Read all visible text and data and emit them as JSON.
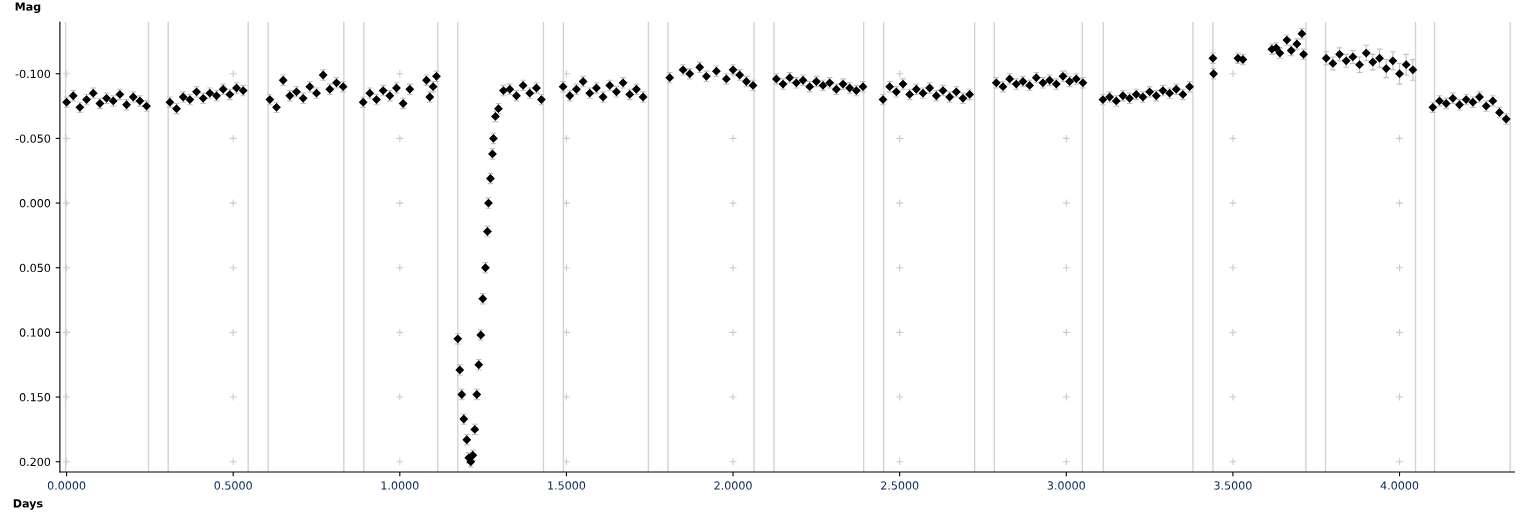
{
  "chart_data": {
    "type": "scatter",
    "xlabel": "Days",
    "ylabel": "Mag",
    "marker": "diamond",
    "grid": true,
    "xlim": [
      -0.02,
      4.345
    ],
    "ylim": [
      0.208,
      -0.14
    ],
    "xticks": [
      {
        "value": 0,
        "label": "0.0000"
      },
      {
        "value": 0.5,
        "label": "0.5000"
      },
      {
        "value": 1,
        "label": "1.0000"
      },
      {
        "value": 1.5,
        "label": "1.5000"
      },
      {
        "value": 2,
        "label": "2.0000"
      },
      {
        "value": 2.5,
        "label": "2.5000"
      },
      {
        "value": 3,
        "label": "3.0000"
      },
      {
        "value": 3.5,
        "label": "3.5000"
      },
      {
        "value": 4,
        "label": "4.0000"
      }
    ],
    "yticks": [
      {
        "value": -0.1,
        "label": "-0.100"
      },
      {
        "value": -0.05,
        "label": "-0.050"
      },
      {
        "value": 0,
        "label": "0.000"
      },
      {
        "value": 0.05,
        "label": "0.050"
      },
      {
        "value": 0.1,
        "label": "0.100"
      },
      {
        "value": 0.15,
        "label": "0.150"
      },
      {
        "value": 0.2,
        "label": "0.200"
      }
    ],
    "series": [
      {
        "color": "#000000",
        "x": [
          0.0,
          0.02,
          0.04,
          0.06,
          0.08,
          0.1,
          0.12,
          0.14,
          0.16,
          0.18,
          0.2,
          0.22,
          0.24
        ],
        "values": [
          -0.078,
          -0.083,
          -0.074,
          -0.08,
          -0.085,
          -0.077,
          -0.081,
          -0.079,
          -0.084,
          -0.076,
          -0.082,
          -0.079,
          -0.075
        ],
        "errors": [
          0.004,
          0.004,
          0.004,
          0.004,
          0.004,
          0.004,
          0.004,
          0.004,
          0.004,
          0.004,
          0.004,
          0.004,
          0.004
        ]
      },
      {
        "color": "#000000",
        "x": [
          0.31,
          0.33,
          0.35,
          0.37,
          0.39,
          0.41,
          0.43,
          0.45,
          0.47,
          0.49,
          0.51,
          0.53
        ],
        "values": [
          -0.078,
          -0.073,
          -0.082,
          -0.08,
          -0.086,
          -0.081,
          -0.085,
          -0.083,
          -0.088,
          -0.084,
          -0.089,
          -0.087
        ],
        "errors": [
          0.004,
          0.004,
          0.004,
          0.004,
          0.004,
          0.004,
          0.004,
          0.004,
          0.004,
          0.004,
          0.004,
          0.004
        ]
      },
      {
        "color": "#000000",
        "x": [
          0.61,
          0.63,
          0.65,
          0.67,
          0.69,
          0.71,
          0.73,
          0.75,
          0.77,
          0.79,
          0.81,
          0.83
        ],
        "values": [
          -0.08,
          -0.074,
          -0.095,
          -0.083,
          -0.086,
          -0.081,
          -0.09,
          -0.085,
          -0.099,
          -0.088,
          -0.093,
          -0.09
        ],
        "errors": [
          0.004,
          0.004,
          0.004,
          0.004,
          0.004,
          0.004,
          0.004,
          0.004,
          0.004,
          0.004,
          0.004,
          0.004
        ]
      },
      {
        "color": "#000000",
        "x": [
          0.89,
          0.91,
          0.93,
          0.95,
          0.97,
          0.99,
          1.01,
          1.03,
          1.08,
          1.09,
          1.1,
          1.11
        ],
        "values": [
          -0.078,
          -0.085,
          -0.08,
          -0.087,
          -0.083,
          -0.089,
          -0.077,
          -0.088,
          -0.095,
          -0.082,
          -0.09,
          -0.098
        ],
        "errors": [
          0.004,
          0.004,
          0.004,
          0.004,
          0.004,
          0.004,
          0.004,
          0.004,
          0.004,
          0.004,
          0.004,
          0.004
        ]
      },
      {
        "color": "#000000",
        "x": [
          1.174,
          1.18,
          1.186,
          1.192,
          1.201,
          1.207,
          1.213,
          1.219,
          1.225,
          1.231,
          1.237,
          1.243,
          1.249,
          1.257,
          1.263,
          1.266,
          1.272,
          1.278,
          1.281,
          1.287,
          1.296,
          1.311,
          1.33,
          1.35,
          1.37,
          1.39,
          1.41,
          1.425
        ],
        "values": [
          0.105,
          0.129,
          0.148,
          0.167,
          0.183,
          0.197,
          0.2,
          0.195,
          0.175,
          0.148,
          0.125,
          0.102,
          0.074,
          0.05,
          0.022,
          0.0,
          -0.019,
          -0.038,
          -0.05,
          -0.067,
          -0.073,
          -0.087,
          -0.088,
          -0.083,
          -0.091,
          -0.085,
          -0.089,
          -0.08
        ],
        "errors": [
          0.004,
          0.004,
          0.004,
          0.004,
          0.004,
          0.004,
          0.004,
          0.004,
          0.004,
          0.004,
          0.004,
          0.004,
          0.004,
          0.004,
          0.004,
          0.004,
          0.004,
          0.004,
          0.004,
          0.004,
          0.004,
          0.004,
          0.004,
          0.004,
          0.004,
          0.004,
          0.004,
          0.004
        ]
      },
      {
        "color": "#000000",
        "x": [
          1.49,
          1.51,
          1.53,
          1.55,
          1.57,
          1.59,
          1.61,
          1.63,
          1.65,
          1.67,
          1.69,
          1.71,
          1.73
        ],
        "values": [
          -0.09,
          -0.083,
          -0.088,
          -0.094,
          -0.085,
          -0.089,
          -0.082,
          -0.091,
          -0.086,
          -0.093,
          -0.084,
          -0.088,
          -0.082
        ],
        "errors": [
          0.004,
          0.004,
          0.004,
          0.004,
          0.004,
          0.004,
          0.004,
          0.004,
          0.004,
          0.004,
          0.004,
          0.004,
          0.004
        ]
      },
      {
        "color": "#000000",
        "x": [
          1.81,
          1.85,
          1.87,
          1.9,
          1.92,
          1.95,
          1.98,
          2.0,
          2.02,
          2.04,
          2.06
        ],
        "values": [
          -0.097,
          -0.103,
          -0.1,
          -0.105,
          -0.098,
          -0.102,
          -0.096,
          -0.103,
          -0.099,
          -0.094,
          -0.091
        ],
        "errors": [
          0.004,
          0.004,
          0.004,
          0.004,
          0.004,
          0.004,
          0.004,
          0.004,
          0.004,
          0.004,
          0.004
        ]
      },
      {
        "color": "#000000",
        "x": [
          2.13,
          2.15,
          2.17,
          2.19,
          2.21,
          2.23,
          2.25,
          2.27,
          2.29,
          2.31,
          2.33,
          2.35,
          2.37,
          2.39
        ],
        "values": [
          -0.096,
          -0.092,
          -0.097,
          -0.093,
          -0.095,
          -0.09,
          -0.094,
          -0.091,
          -0.093,
          -0.088,
          -0.092,
          -0.089,
          -0.087,
          -0.09
        ],
        "errors": [
          0.004,
          0.004,
          0.004,
          0.004,
          0.004,
          0.004,
          0.004,
          0.004,
          0.004,
          0.004,
          0.004,
          0.004,
          0.004,
          0.004
        ]
      },
      {
        "color": "#000000",
        "x": [
          2.45,
          2.47,
          2.49,
          2.51,
          2.53,
          2.55,
          2.57,
          2.59,
          2.61,
          2.63,
          2.65,
          2.67,
          2.69,
          2.71
        ],
        "values": [
          -0.08,
          -0.09,
          -0.086,
          -0.092,
          -0.084,
          -0.088,
          -0.085,
          -0.089,
          -0.083,
          -0.087,
          -0.082,
          -0.086,
          -0.081,
          -0.084
        ],
        "errors": [
          0.004,
          0.004,
          0.004,
          0.004,
          0.004,
          0.004,
          0.004,
          0.004,
          0.004,
          0.004,
          0.004,
          0.004,
          0.004,
          0.004
        ]
      },
      {
        "color": "#000000",
        "x": [
          2.79,
          2.81,
          2.83,
          2.85,
          2.87,
          2.89,
          2.91,
          2.93,
          2.95,
          2.97,
          2.99,
          3.01,
          3.03,
          3.05
        ],
        "values": [
          -0.093,
          -0.09,
          -0.096,
          -0.092,
          -0.094,
          -0.091,
          -0.097,
          -0.093,
          -0.095,
          -0.092,
          -0.098,
          -0.094,
          -0.096,
          -0.093
        ],
        "errors": [
          0.004,
          0.004,
          0.004,
          0.004,
          0.004,
          0.004,
          0.004,
          0.004,
          0.004,
          0.004,
          0.004,
          0.004,
          0.004,
          0.004
        ]
      },
      {
        "color": "#000000",
        "x": [
          3.11,
          3.13,
          3.15,
          3.17,
          3.19,
          3.21,
          3.23,
          3.25,
          3.27,
          3.29,
          3.31,
          3.33,
          3.35,
          3.37
        ],
        "values": [
          -0.08,
          -0.082,
          -0.079,
          -0.083,
          -0.081,
          -0.084,
          -0.082,
          -0.086,
          -0.083,
          -0.087,
          -0.085,
          -0.088,
          -0.084,
          -0.09
        ],
        "errors": [
          0.004,
          0.004,
          0.004,
          0.004,
          0.004,
          0.004,
          0.004,
          0.004,
          0.004,
          0.004,
          0.004,
          0.004,
          0.004,
          0.004
        ]
      },
      {
        "color": "#000000",
        "x": [
          3.44,
          3.442,
          3.515,
          3.53,
          3.617,
          3.63,
          3.641,
          3.662,
          3.675,
          3.692,
          3.707,
          3.712
        ],
        "values": [
          -0.112,
          -0.1,
          -0.112,
          -0.111,
          -0.119,
          -0.12,
          -0.116,
          -0.126,
          -0.118,
          -0.123,
          -0.131,
          -0.115
        ],
        "errors": [
          0.004,
          0.004,
          0.004,
          0.004,
          0.004,
          0.004,
          0.004,
          0.004,
          0.004,
          0.004,
          0.004,
          0.004
        ]
      },
      {
        "color": "#000000",
        "x": [
          3.78,
          3.8,
          3.82,
          3.84,
          3.86,
          3.88,
          3.9,
          3.92,
          3.94,
          3.96,
          3.98,
          4.0,
          4.02,
          4.04
        ],
        "values": [
          -0.112,
          -0.108,
          -0.115,
          -0.11,
          -0.113,
          -0.107,
          -0.116,
          -0.109,
          -0.112,
          -0.104,
          -0.11,
          -0.1,
          -0.107,
          -0.103
        ],
        "errors": [
          0.005,
          0.005,
          0.005,
          0.005,
          0.005,
          0.006,
          0.006,
          0.006,
          0.007,
          0.007,
          0.007,
          0.008,
          0.008,
          0.008
        ]
      },
      {
        "color": "#000000",
        "x": [
          4.1,
          4.12,
          4.14,
          4.16,
          4.18,
          4.2,
          4.22,
          4.24,
          4.26,
          4.28,
          4.3,
          4.32
        ],
        "values": [
          -0.074,
          -0.079,
          -0.077,
          -0.081,
          -0.076,
          -0.08,
          -0.078,
          -0.082,
          -0.075,
          -0.079,
          -0.07,
          -0.065
        ],
        "errors": [
          0.004,
          0.004,
          0.004,
          0.004,
          0.004,
          0.004,
          0.004,
          0.004,
          0.004,
          0.004,
          0.004,
          0.004
        ]
      }
    ],
    "ref_lines": [
      {
        "axis": "x",
        "value": -0.003,
        "color": "#d3d3d3"
      },
      {
        "axis": "x",
        "value": 0.246,
        "color": "#d3d3d3"
      },
      {
        "axis": "x",
        "value": 0.305,
        "color": "#d3d3d3"
      },
      {
        "axis": "x",
        "value": 0.545,
        "color": "#d3d3d3"
      },
      {
        "axis": "x",
        "value": 0.605,
        "color": "#d3d3d3"
      },
      {
        "axis": "x",
        "value": 0.832,
        "color": "#d3d3d3"
      },
      {
        "axis": "x",
        "value": 0.892,
        "color": "#d3d3d3"
      },
      {
        "axis": "x",
        "value": 1.114,
        "color": "#d3d3d3"
      },
      {
        "axis": "x",
        "value": 1.174,
        "color": "#d3d3d3"
      },
      {
        "axis": "x",
        "value": 1.431,
        "color": "#d3d3d3"
      },
      {
        "axis": "x",
        "value": 1.491,
        "color": "#d3d3d3"
      },
      {
        "axis": "x",
        "value": 1.746,
        "color": "#d3d3d3"
      },
      {
        "axis": "x",
        "value": 1.805,
        "color": "#d3d3d3"
      },
      {
        "axis": "x",
        "value": 2.063,
        "color": "#d3d3d3"
      },
      {
        "axis": "x",
        "value": 2.123,
        "color": "#d3d3d3"
      },
      {
        "axis": "x",
        "value": 2.392,
        "color": "#d3d3d3"
      },
      {
        "axis": "x",
        "value": 2.452,
        "color": "#d3d3d3"
      },
      {
        "axis": "x",
        "value": 2.725,
        "color": "#d3d3d3"
      },
      {
        "axis": "x",
        "value": 2.784,
        "color": "#d3d3d3"
      },
      {
        "axis": "x",
        "value": 3.048,
        "color": "#d3d3d3"
      },
      {
        "axis": "x",
        "value": 3.111,
        "color": "#d3d3d3"
      },
      {
        "axis": "x",
        "value": 3.38,
        "color": "#d3d3d3"
      },
      {
        "axis": "x",
        "value": 3.44,
        "color": "#d3d3d3"
      },
      {
        "axis": "x",
        "value": 3.719,
        "color": "#d3d3d3"
      },
      {
        "axis": "x",
        "value": 3.778,
        "color": "#d3d3d3"
      },
      {
        "axis": "x",
        "value": 4.048,
        "color": "#d3d3d3"
      },
      {
        "axis": "x",
        "value": 4.105,
        "color": "#d3d3d3"
      },
      {
        "axis": "x",
        "value": 4.332,
        "color": "#d3d3d3"
      }
    ]
  }
}
